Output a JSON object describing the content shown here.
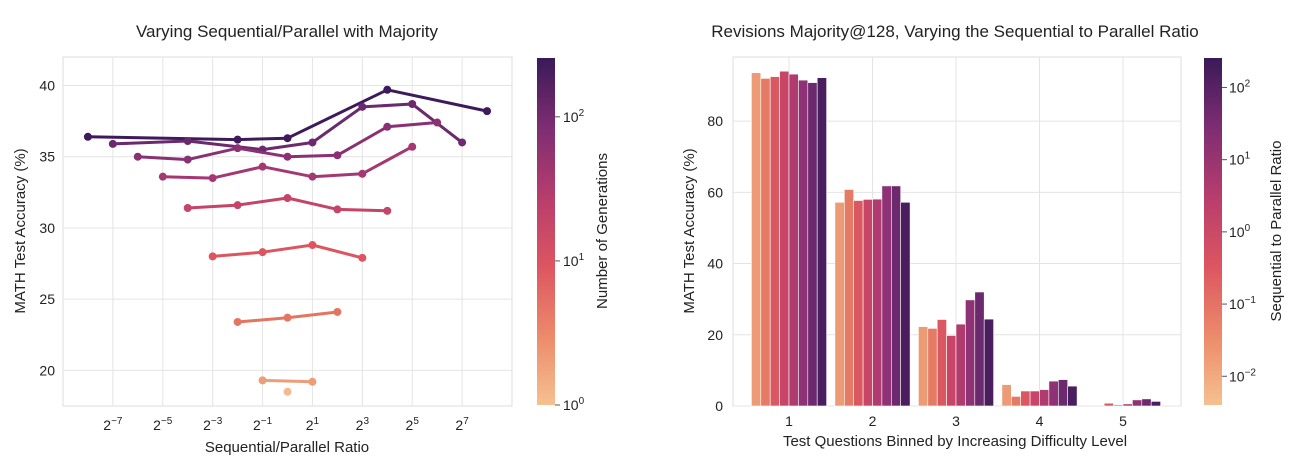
{
  "chart_data": [
    {
      "type": "line",
      "title": "Varying Sequential/Parallel with Majority",
      "xlabel": "Sequential/Parallel Ratio",
      "ylabel": "MATH Test Accuracy (%)",
      "x_scale": "log2",
      "x_ticks": [
        {
          "value": 0.0078125,
          "base": "2",
          "exp": "−7"
        },
        {
          "value": 0.03125,
          "base": "2",
          "exp": "−5"
        },
        {
          "value": 0.125,
          "base": "2",
          "exp": "−3"
        },
        {
          "value": 0.5,
          "base": "2",
          "exp": "−1"
        },
        {
          "value": 2,
          "base": "2",
          "exp": "1"
        },
        {
          "value": 8,
          "base": "2",
          "exp": "3"
        },
        {
          "value": 32,
          "base": "2",
          "exp": "5"
        },
        {
          "value": 128,
          "base": "2",
          "exp": "7"
        }
      ],
      "y_ticks": [
        20,
        25,
        30,
        35,
        40
      ],
      "ylim": [
        17.5,
        42
      ],
      "grid": true,
      "colorbar": {
        "label": "Number of Generations",
        "scale": "log",
        "range": [
          1,
          256
        ],
        "ticks": [
          {
            "value": 1,
            "base": "10",
            "exp": "0"
          },
          {
            "value": 10,
            "base": "10",
            "exp": "1"
          },
          {
            "value": 100,
            "base": "10",
            "exp": "2"
          }
        ]
      },
      "series": [
        {
          "generations": 256,
          "color": "#3d1a5c",
          "points": [
            [
              0.0039,
              36.4
            ],
            [
              0.25,
              36.2
            ],
            [
              1,
              36.3
            ],
            [
              16,
              39.7
            ],
            [
              256,
              38.2
            ]
          ]
        },
        {
          "generations": 128,
          "color": "#6b2a6e",
          "points": [
            [
              0.0078,
              35.9
            ],
            [
              0.0625,
              36.1
            ],
            [
              0.5,
              35.5
            ],
            [
              2,
              36.0
            ],
            [
              8,
              38.5
            ],
            [
              32,
              38.7
            ],
            [
              128,
              36.0
            ]
          ]
        },
        {
          "generations": 64,
          "color": "#8a3174",
          "points": [
            [
              0.0156,
              35.0
            ],
            [
              0.0625,
              34.8
            ],
            [
              0.25,
              35.6
            ],
            [
              1,
              35.0
            ],
            [
              4,
              35.1
            ],
            [
              16,
              37.1
            ],
            [
              64,
              37.4
            ]
          ]
        },
        {
          "generations": 32,
          "color": "#a43872",
          "points": [
            [
              0.0313,
              33.6
            ],
            [
              0.125,
              33.5
            ],
            [
              0.5,
              34.3
            ],
            [
              2,
              33.6
            ],
            [
              8,
              33.8
            ],
            [
              32,
              35.7
            ]
          ]
        },
        {
          "generations": 16,
          "color": "#c54468",
          "points": [
            [
              0.0625,
              31.4
            ],
            [
              0.25,
              31.6
            ],
            [
              1,
              32.1
            ],
            [
              4,
              31.3
            ],
            [
              16,
              31.2
            ]
          ]
        },
        {
          "generations": 8,
          "color": "#dc5561",
          "points": [
            [
              0.125,
              28.0
            ],
            [
              0.5,
              28.3
            ],
            [
              2,
              28.8
            ],
            [
              8,
              27.9
            ]
          ]
        },
        {
          "generations": 4,
          "color": "#e57460",
          "points": [
            [
              0.25,
              23.4
            ],
            [
              1,
              23.7
            ],
            [
              4,
              24.1
            ]
          ]
        },
        {
          "generations": 2,
          "color": "#ec9e7a",
          "points": [
            [
              0.5,
              19.3
            ],
            [
              2,
              19.2
            ]
          ]
        },
        {
          "generations": 1,
          "color": "#f3b98f",
          "points": [
            [
              1,
              18.5
            ]
          ]
        }
      ]
    },
    {
      "type": "bar",
      "title": "Revisions Majority@128, Varying the Sequential to Parallel Ratio",
      "xlabel": "Test Questions Binned by Increasing Difficulty Level",
      "ylabel": "MATH Test Accuracy (%)",
      "categories": [
        "1",
        "2",
        "3",
        "4",
        "5"
      ],
      "y_ticks": [
        0,
        20,
        40,
        60,
        80
      ],
      "ylim": [
        0,
        98
      ],
      "grid": true,
      "colorbar": {
        "label": "Sequential to Parallel Ratio",
        "scale": "log",
        "range": [
          0.004,
          256
        ],
        "ticks": [
          {
            "value": 0.01,
            "base": "10",
            "exp": "−2"
          },
          {
            "value": 0.1,
            "base": "10",
            "exp": "−1"
          },
          {
            "value": 1,
            "base": "10",
            "exp": "0"
          },
          {
            "value": 10,
            "base": "10",
            "exp": "1"
          },
          {
            "value": 100,
            "base": "10",
            "exp": "2"
          }
        ]
      },
      "bar_colors": [
        "#ec9b76",
        "#e57b64",
        "#da5861",
        "#c94567",
        "#af3b6f",
        "#8e3175",
        "#6b2a6e",
        "#481e5f"
      ],
      "series_values": [
        [
          93.6,
          92.0,
          92.5,
          94.0,
          93.2,
          91.5,
          90.8,
          92.2
        ],
        [
          57.2,
          60.8,
          57.7,
          58.0,
          58.1,
          61.8,
          61.8,
          57.2
        ],
        [
          22.3,
          21.8,
          24.3,
          19.8,
          23.0,
          29.8,
          32.0,
          24.4
        ],
        [
          6.0,
          2.7,
          4.2,
          4.2,
          4.6,
          7.0,
          7.4,
          5.6
        ],
        [
          0,
          0,
          0.8,
          0.3,
          0.6,
          1.7,
          2.0,
          1.3
        ]
      ]
    }
  ]
}
